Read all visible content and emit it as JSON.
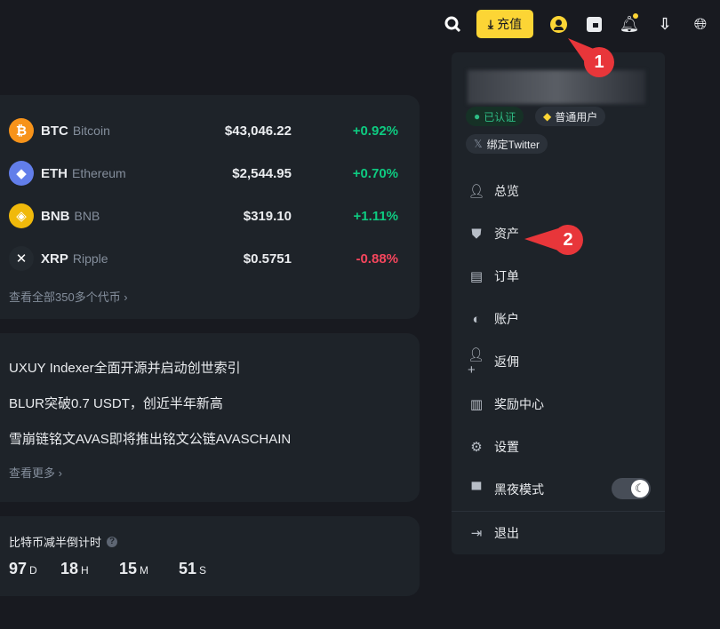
{
  "header": {
    "deposit_label": "充值",
    "icons": [
      "search-icon",
      "deposit-icon",
      "user-icon",
      "wallet-icon",
      "bell-icon",
      "download-icon",
      "globe-icon"
    ],
    "accent": "#fcd535"
  },
  "markets": {
    "coins": [
      {
        "symbol": "BTC",
        "name": "Bitcoin",
        "price": "$43,046.22",
        "change": "+0.92%",
        "dir": "up"
      },
      {
        "symbol": "ETH",
        "name": "Ethereum",
        "price": "$2,544.95",
        "change": "+0.70%",
        "dir": "up"
      },
      {
        "symbol": "BNB",
        "name": "BNB",
        "price": "$319.10",
        "change": "+1.11%",
        "dir": "up"
      },
      {
        "symbol": "XRP",
        "name": "Ripple",
        "price": "$0.5751",
        "change": "-0.88%",
        "dir": "down"
      }
    ],
    "view_all": "查看全部350多个代币 ›"
  },
  "news": {
    "items": [
      "UXUY Indexer全面开源并启动创世索引",
      "BLUR突破0.7 USDT，创近半年新高",
      "雪崩链铭文AVAS即将推出铭文公链AVASCHAIN"
    ],
    "more": "查看更多 ›"
  },
  "halving": {
    "title": "比特币减半倒计时",
    "days": "97",
    "d": "D",
    "hours": "18",
    "h": "H",
    "minutes": "15",
    "m": "M",
    "seconds": "51",
    "s": "S"
  },
  "menu": {
    "verified": "已认证",
    "user_level": "普通用户",
    "twitter": "绑定Twitter",
    "items": [
      "总览",
      "资产",
      "订单",
      "账户",
      "返佣",
      "奖励中心",
      "设置",
      "黑夜模式",
      "退出"
    ],
    "dark_mode_on": true
  },
  "annotations": [
    "1",
    "2"
  ]
}
